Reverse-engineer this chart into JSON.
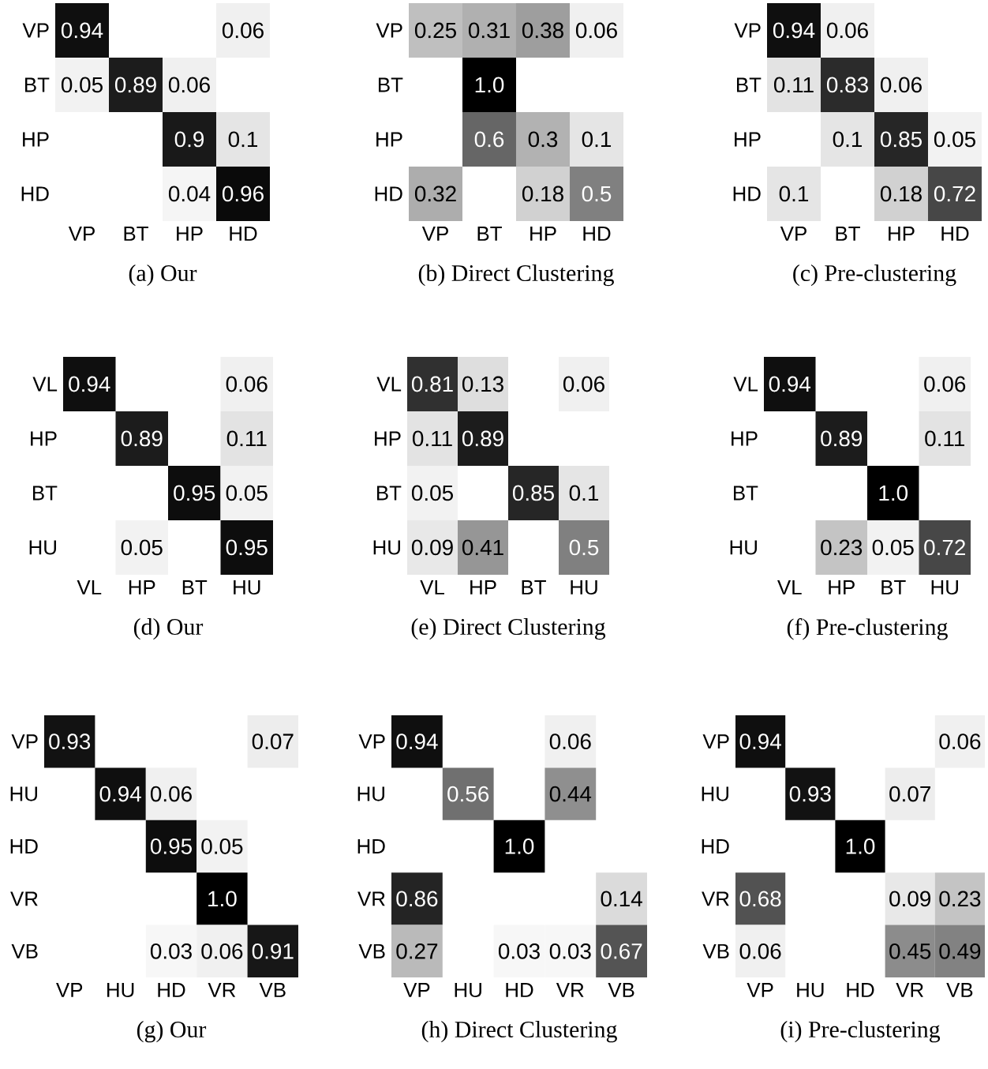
{
  "chart_data": [
    {
      "type": "heatmap",
      "title": "(a) Our",
      "categories": [
        "VP",
        "BT",
        "HP",
        "HD"
      ],
      "y_categories": [
        "VP",
        "BT",
        "HP",
        "HD"
      ],
      "cells": [
        [
          0.94,
          null,
          null,
          0.06
        ],
        [
          0.05,
          0.89,
          0.06,
          null
        ],
        [
          null,
          null,
          0.9,
          0.1
        ],
        [
          null,
          null,
          0.04,
          0.96
        ]
      ],
      "cell_labels": [
        [
          "0.94",
          null,
          null,
          "0.06"
        ],
        [
          "0.05",
          "0.89",
          "0.06",
          null
        ],
        [
          null,
          null,
          "0.9",
          "0.1"
        ],
        [
          null,
          null,
          "0.04",
          "0.96"
        ]
      ]
    },
    {
      "type": "heatmap",
      "title": "(b) Direct Clustering",
      "categories": [
        "VP",
        "BT",
        "HP",
        "HD"
      ],
      "y_categories": [
        "VP",
        "BT",
        "HP",
        "HD"
      ],
      "cells": [
        [
          0.25,
          0.31,
          0.38,
          0.06
        ],
        [
          null,
          1.0,
          null,
          null
        ],
        [
          null,
          0.6,
          0.3,
          0.1
        ],
        [
          0.32,
          null,
          0.18,
          0.5
        ]
      ],
      "cell_labels": [
        [
          "0.25",
          "0.31",
          "0.38",
          "0.06"
        ],
        [
          null,
          "1.0",
          null,
          null
        ],
        [
          null,
          "0.6",
          "0.3",
          "0.1"
        ],
        [
          "0.32",
          null,
          "0.18",
          "0.5"
        ]
      ]
    },
    {
      "type": "heatmap",
      "title": "(c) Pre-clustering",
      "categories": [
        "VP",
        "BT",
        "HP",
        "HD"
      ],
      "y_categories": [
        "VP",
        "BT",
        "HP",
        "HD"
      ],
      "cells": [
        [
          0.94,
          0.06,
          null,
          null
        ],
        [
          0.11,
          0.83,
          0.06,
          null
        ],
        [
          null,
          0.1,
          0.85,
          0.05
        ],
        [
          0.1,
          null,
          0.18,
          0.72
        ]
      ],
      "cell_labels": [
        [
          "0.94",
          "0.06",
          null,
          null
        ],
        [
          "0.11",
          "0.83",
          "0.06",
          null
        ],
        [
          null,
          "0.1",
          "0.85",
          "0.05"
        ],
        [
          "0.1",
          null,
          "0.18",
          "0.72"
        ]
      ]
    },
    {
      "type": "heatmap",
      "title": "(d) Our",
      "categories": [
        "VL",
        "HP",
        "BT",
        "HU"
      ],
      "y_categories": [
        "VL",
        "HP",
        "BT",
        "HU"
      ],
      "cells": [
        [
          0.94,
          null,
          null,
          0.06
        ],
        [
          null,
          0.89,
          null,
          0.11
        ],
        [
          null,
          null,
          0.95,
          0.05
        ],
        [
          null,
          0.05,
          null,
          0.95
        ]
      ],
      "cell_labels": [
        [
          "0.94",
          null,
          null,
          "0.06"
        ],
        [
          null,
          "0.89",
          null,
          "0.11"
        ],
        [
          null,
          null,
          "0.95",
          "0.05"
        ],
        [
          null,
          "0.05",
          null,
          "0.95"
        ]
      ]
    },
    {
      "type": "heatmap",
      "title": "(e) Direct Clustering",
      "categories": [
        "VL",
        "HP",
        "BT",
        "HU"
      ],
      "y_categories": [
        "VL",
        "HP",
        "BT",
        "HU"
      ],
      "cells": [
        [
          0.81,
          0.13,
          null,
          0.06
        ],
        [
          0.11,
          0.89,
          null,
          null
        ],
        [
          0.05,
          null,
          0.85,
          0.1
        ],
        [
          0.09,
          0.41,
          null,
          0.5
        ]
      ],
      "cell_labels": [
        [
          "0.81",
          "0.13",
          null,
          "0.06"
        ],
        [
          "0.11",
          "0.89",
          null,
          null
        ],
        [
          "0.05",
          null,
          "0.85",
          "0.1"
        ],
        [
          "0.09",
          "0.41",
          null,
          "0.5"
        ]
      ]
    },
    {
      "type": "heatmap",
      "title": "(f) Pre-clustering",
      "categories": [
        "VL",
        "HP",
        "BT",
        "HU"
      ],
      "y_categories": [
        "VL",
        "HP",
        "BT",
        "HU"
      ],
      "cells": [
        [
          0.94,
          null,
          null,
          0.06
        ],
        [
          null,
          0.89,
          null,
          0.11
        ],
        [
          null,
          null,
          1.0,
          null
        ],
        [
          null,
          0.23,
          0.05,
          0.72
        ]
      ],
      "cell_labels": [
        [
          "0.94",
          null,
          null,
          "0.06"
        ],
        [
          null,
          "0.89",
          null,
          "0.11"
        ],
        [
          null,
          null,
          "1.0",
          null
        ],
        [
          null,
          "0.23",
          "0.05",
          "0.72"
        ]
      ]
    },
    {
      "type": "heatmap",
      "title": "(g) Our",
      "categories": [
        "VP",
        "HU",
        "HD",
        "VR",
        "VB"
      ],
      "y_categories": [
        "VP",
        "HU",
        "HD",
        "VR",
        "VB"
      ],
      "cells": [
        [
          0.93,
          null,
          null,
          null,
          0.07
        ],
        [
          null,
          0.94,
          0.06,
          null,
          null
        ],
        [
          null,
          null,
          0.95,
          0.05,
          null
        ],
        [
          null,
          null,
          null,
          1.0,
          null
        ],
        [
          null,
          null,
          0.03,
          0.06,
          0.91
        ]
      ],
      "cell_labels": [
        [
          "0.93",
          null,
          null,
          null,
          "0.07"
        ],
        [
          null,
          "0.94",
          "0.06",
          null,
          null
        ],
        [
          null,
          null,
          "0.95",
          "0.05",
          null
        ],
        [
          null,
          null,
          null,
          "1.0",
          null
        ],
        [
          null,
          null,
          "0.03",
          "0.06",
          "0.91"
        ]
      ]
    },
    {
      "type": "heatmap",
      "title": "(h) Direct Clustering",
      "categories": [
        "VP",
        "HU",
        "HD",
        "VR",
        "VB"
      ],
      "y_categories": [
        "VP",
        "HU",
        "HD",
        "VR",
        "VB"
      ],
      "cells": [
        [
          0.94,
          null,
          null,
          0.06,
          null
        ],
        [
          null,
          0.56,
          null,
          0.44,
          null
        ],
        [
          null,
          null,
          1.0,
          null,
          null
        ],
        [
          0.86,
          null,
          null,
          null,
          0.14
        ],
        [
          0.27,
          null,
          0.03,
          0.03,
          0.67
        ]
      ],
      "cell_labels": [
        [
          "0.94",
          null,
          null,
          "0.06",
          null
        ],
        [
          null,
          "0.56",
          null,
          "0.44",
          null
        ],
        [
          null,
          null,
          "1.0",
          null,
          null
        ],
        [
          "0.86",
          null,
          null,
          null,
          "0.14"
        ],
        [
          "0.27",
          null,
          "0.03",
          "0.03",
          "0.67"
        ]
      ]
    },
    {
      "type": "heatmap",
      "title": "(i) Pre-clustering",
      "categories": [
        "VP",
        "HU",
        "HD",
        "VR",
        "VB"
      ],
      "y_categories": [
        "VP",
        "HU",
        "HD",
        "VR",
        "VB"
      ],
      "cells": [
        [
          0.94,
          null,
          null,
          null,
          0.06
        ],
        [
          null,
          0.93,
          null,
          0.07,
          null
        ],
        [
          null,
          null,
          1.0,
          null,
          null
        ],
        [
          0.68,
          null,
          null,
          0.09,
          0.23
        ],
        [
          0.06,
          null,
          null,
          0.45,
          0.49
        ]
      ],
      "cell_labels": [
        [
          "0.94",
          null,
          null,
          null,
          "0.06"
        ],
        [
          null,
          "0.93",
          null,
          "0.07",
          null
        ],
        [
          null,
          null,
          "1.0",
          null,
          null
        ],
        [
          "0.68",
          null,
          null,
          "0.09",
          "0.23"
        ],
        [
          "0.06",
          null,
          null,
          "0.45",
          "0.49"
        ]
      ]
    }
  ]
}
